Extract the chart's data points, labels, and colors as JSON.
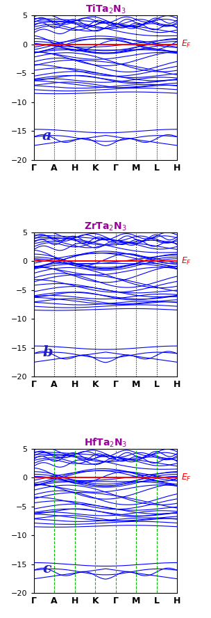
{
  "panels": [
    {
      "title": "TiTa$_2$N$_3$",
      "label": "a",
      "vline_color": "black",
      "vline_style": "dotted"
    },
    {
      "title": "ZrTa$_2$N$_3$",
      "label": "b",
      "vline_color": "black",
      "vline_style": "dotted"
    },
    {
      "title": "HfTa$_2$N$_3$",
      "label": "c",
      "vline_color": "#00bb00",
      "vline_style": "dashed"
    }
  ],
  "kpoints": [
    0,
    1,
    2,
    3,
    4,
    5,
    6,
    7
  ],
  "klabels": [
    "Γ",
    "A",
    "H",
    "K",
    "Γ",
    "M",
    "L",
    "H"
  ],
  "ylim": [
    -20,
    5
  ],
  "yticks": [
    -20,
    -15,
    -10,
    -5,
    0,
    5
  ],
  "ef_color": "red",
  "band_color": "blue",
  "title_color": "#990099",
  "label_color": "#2222bb",
  "ef_label_color": "red",
  "background": "white"
}
